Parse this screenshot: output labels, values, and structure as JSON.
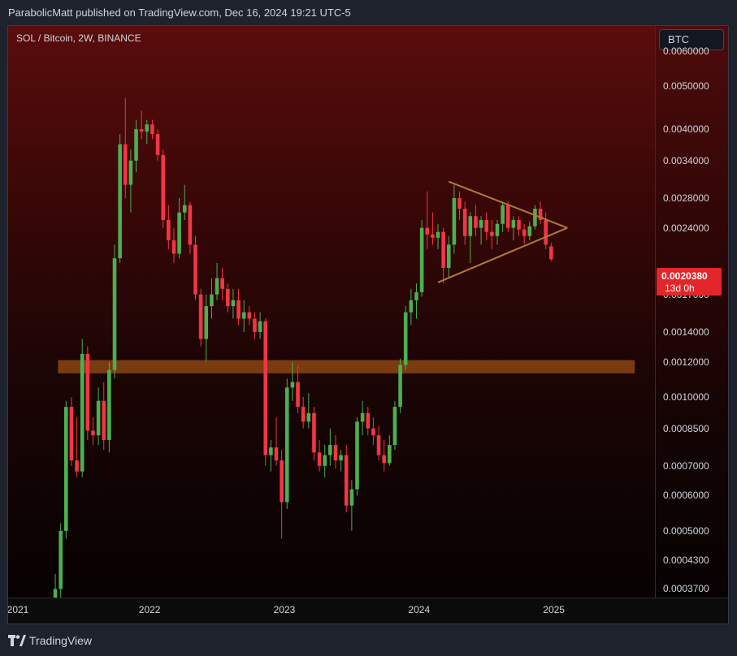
{
  "header": {
    "published": "ParabolicMatt published on TradingView.com, Dec 16, 2024 19:21 UTC-5"
  },
  "chart": {
    "title": "SOL / Bitcoin, 2W, BINANCE",
    "currency": "BTC",
    "last_price": "0.0020380",
    "countdown": "13d 0h",
    "price_ticks": [
      "0.0060000",
      "0.0050000",
      "0.0040000",
      "0.0034000",
      "0.0028000",
      "0.0024000",
      "0.0017000",
      "0.0014000",
      "0.0012000",
      "0.0010000",
      "0.0008500",
      "0.0007000",
      "0.0006000",
      "0.0005000",
      "0.0004300",
      "0.0003700"
    ],
    "time_ticks": [
      "2021",
      "2022",
      "2023",
      "2024",
      "2025"
    ]
  },
  "footer": {
    "brand": "TradingView"
  },
  "colors": {
    "up": "#4caf50",
    "down": "#f23645",
    "support_zone": "#8b4513",
    "triangle": "#b07a3a",
    "last_price": "#e3262b"
  },
  "chart_data": {
    "type": "candlestick",
    "title": "SOL / Bitcoin, 2W, BINANCE",
    "scale": "log",
    "ylim": [
      0.00036,
      0.0066
    ],
    "xlim": [
      2020.95,
      2025.75
    ],
    "grid": false,
    "candles": [
      {
        "t": 2021.3,
        "o": 0.0003,
        "h": 0.0004,
        "l": 0.00028,
        "c": 0.00037
      },
      {
        "t": 2021.34,
        "o": 0.00037,
        "h": 0.00052,
        "l": 0.00035,
        "c": 0.0005
      },
      {
        "t": 2021.38,
        "o": 0.0005,
        "h": 0.00098,
        "l": 0.00048,
        "c": 0.00095
      },
      {
        "t": 2021.42,
        "o": 0.00095,
        "h": 0.001,
        "l": 0.0007,
        "c": 0.00072
      },
      {
        "t": 2021.46,
        "o": 0.00072,
        "h": 0.0009,
        "l": 0.00066,
        "c": 0.00068
      },
      {
        "t": 2021.5,
        "o": 0.00068,
        "h": 0.00135,
        "l": 0.00066,
        "c": 0.00125
      },
      {
        "t": 2021.54,
        "o": 0.00125,
        "h": 0.0013,
        "l": 0.0008,
        "c": 0.00084
      },
      {
        "t": 2021.58,
        "o": 0.00084,
        "h": 0.0009,
        "l": 0.00078,
        "c": 0.00082
      },
      {
        "t": 2021.62,
        "o": 0.00082,
        "h": 0.00105,
        "l": 0.00078,
        "c": 0.00098
      },
      {
        "t": 2021.66,
        "o": 0.00098,
        "h": 0.00108,
        "l": 0.00076,
        "c": 0.0008
      },
      {
        "t": 2021.7,
        "o": 0.0008,
        "h": 0.0012,
        "l": 0.00075,
        "c": 0.00115
      },
      {
        "t": 2021.74,
        "o": 0.00115,
        "h": 0.0022,
        "l": 0.0011,
        "c": 0.00205
      },
      {
        "t": 2021.78,
        "o": 0.00205,
        "h": 0.0039,
        "l": 0.002,
        "c": 0.0037
      },
      {
        "t": 2021.82,
        "o": 0.0037,
        "h": 0.0047,
        "l": 0.0028,
        "c": 0.003
      },
      {
        "t": 2021.86,
        "o": 0.003,
        "h": 0.0036,
        "l": 0.0026,
        "c": 0.0034
      },
      {
        "t": 2021.9,
        "o": 0.0034,
        "h": 0.0042,
        "l": 0.0032,
        "c": 0.004
      },
      {
        "t": 2021.94,
        "o": 0.004,
        "h": 0.0044,
        "l": 0.0038,
        "c": 0.00395
      },
      {
        "t": 2021.98,
        "o": 0.00395,
        "h": 0.0042,
        "l": 0.0037,
        "c": 0.0041
      },
      {
        "t": 2022.02,
        "o": 0.0041,
        "h": 0.0042,
        "l": 0.0038,
        "c": 0.0039
      },
      {
        "t": 2022.06,
        "o": 0.0039,
        "h": 0.004,
        "l": 0.0034,
        "c": 0.0035
      },
      {
        "t": 2022.1,
        "o": 0.0035,
        "h": 0.0036,
        "l": 0.0024,
        "c": 0.0025
      },
      {
        "t": 2022.14,
        "o": 0.0025,
        "h": 0.0027,
        "l": 0.00215,
        "c": 0.00225
      },
      {
        "t": 2022.18,
        "o": 0.00225,
        "h": 0.0024,
        "l": 0.002,
        "c": 0.0021
      },
      {
        "t": 2022.22,
        "o": 0.0021,
        "h": 0.0028,
        "l": 0.00205,
        "c": 0.0026
      },
      {
        "t": 2022.26,
        "o": 0.0026,
        "h": 0.003,
        "l": 0.0025,
        "c": 0.0027
      },
      {
        "t": 2022.3,
        "o": 0.0027,
        "h": 0.00275,
        "l": 0.0021,
        "c": 0.0022
      },
      {
        "t": 2022.34,
        "o": 0.0022,
        "h": 0.0023,
        "l": 0.00165,
        "c": 0.0017
      },
      {
        "t": 2022.38,
        "o": 0.0017,
        "h": 0.00175,
        "l": 0.0013,
        "c": 0.00135
      },
      {
        "t": 2022.42,
        "o": 0.00135,
        "h": 0.0017,
        "l": 0.0012,
        "c": 0.0016
      },
      {
        "t": 2022.46,
        "o": 0.0016,
        "h": 0.00185,
        "l": 0.0015,
        "c": 0.0017
      },
      {
        "t": 2022.5,
        "o": 0.0017,
        "h": 0.002,
        "l": 0.00165,
        "c": 0.00185
      },
      {
        "t": 2022.54,
        "o": 0.00185,
        "h": 0.00195,
        "l": 0.00165,
        "c": 0.00175
      },
      {
        "t": 2022.58,
        "o": 0.00175,
        "h": 0.0018,
        "l": 0.00155,
        "c": 0.0016
      },
      {
        "t": 2022.62,
        "o": 0.0016,
        "h": 0.00175,
        "l": 0.0015,
        "c": 0.00165
      },
      {
        "t": 2022.66,
        "o": 0.00165,
        "h": 0.00175,
        "l": 0.00145,
        "c": 0.0015
      },
      {
        "t": 2022.7,
        "o": 0.0015,
        "h": 0.00165,
        "l": 0.0014,
        "c": 0.00155
      },
      {
        "t": 2022.74,
        "o": 0.00155,
        "h": 0.0016,
        "l": 0.00145,
        "c": 0.0015
      },
      {
        "t": 2022.78,
        "o": 0.0015,
        "h": 0.00155,
        "l": 0.00135,
        "c": 0.0014
      },
      {
        "t": 2022.82,
        "o": 0.0014,
        "h": 0.00155,
        "l": 0.00135,
        "c": 0.00148
      },
      {
        "t": 2022.86,
        "o": 0.00148,
        "h": 0.0015,
        "l": 0.0007,
        "c": 0.00074
      },
      {
        "t": 2022.9,
        "o": 0.00074,
        "h": 0.0008,
        "l": 0.00068,
        "c": 0.00077
      },
      {
        "t": 2022.94,
        "o": 0.00077,
        "h": 0.0009,
        "l": 0.0007,
        "c": 0.00072
      },
      {
        "t": 2022.98,
        "o": 0.00072,
        "h": 0.00076,
        "l": 0.00048,
        "c": 0.00058
      },
      {
        "t": 2023.02,
        "o": 0.00058,
        "h": 0.0011,
        "l": 0.00056,
        "c": 0.00105
      },
      {
        "t": 2023.06,
        "o": 0.00105,
        "h": 0.0012,
        "l": 0.00098,
        "c": 0.00108
      },
      {
        "t": 2023.1,
        "o": 0.00108,
        "h": 0.00118,
        "l": 0.00092,
        "c": 0.00095
      },
      {
        "t": 2023.14,
        "o": 0.00095,
        "h": 0.001,
        "l": 0.00085,
        "c": 0.00088
      },
      {
        "t": 2023.18,
        "o": 0.00088,
        "h": 0.00102,
        "l": 0.00085,
        "c": 0.00092
      },
      {
        "t": 2023.22,
        "o": 0.00092,
        "h": 0.00095,
        "l": 0.00072,
        "c": 0.00075
      },
      {
        "t": 2023.26,
        "o": 0.00075,
        "h": 0.0008,
        "l": 0.00068,
        "c": 0.0007
      },
      {
        "t": 2023.3,
        "o": 0.0007,
        "h": 0.00078,
        "l": 0.00066,
        "c": 0.00074
      },
      {
        "t": 2023.34,
        "o": 0.00074,
        "h": 0.00085,
        "l": 0.0007,
        "c": 0.00078
      },
      {
        "t": 2023.38,
        "o": 0.00078,
        "h": 0.00082,
        "l": 0.00069,
        "c": 0.00072
      },
      {
        "t": 2023.42,
        "o": 0.00072,
        "h": 0.00076,
        "l": 0.00068,
        "c": 0.00074
      },
      {
        "t": 2023.46,
        "o": 0.00074,
        "h": 0.00078,
        "l": 0.00055,
        "c": 0.00057
      },
      {
        "t": 2023.5,
        "o": 0.00057,
        "h": 0.00065,
        "l": 0.0005,
        "c": 0.00062
      },
      {
        "t": 2023.54,
        "o": 0.00062,
        "h": 0.0009,
        "l": 0.0006,
        "c": 0.00088
      },
      {
        "t": 2023.58,
        "o": 0.00088,
        "h": 0.00098,
        "l": 0.00082,
        "c": 0.00092
      },
      {
        "t": 2023.62,
        "o": 0.00092,
        "h": 0.00095,
        "l": 0.00082,
        "c": 0.00085
      },
      {
        "t": 2023.66,
        "o": 0.00085,
        "h": 0.0009,
        "l": 0.00078,
        "c": 0.00082
      },
      {
        "t": 2023.7,
        "o": 0.00082,
        "h": 0.00086,
        "l": 0.00072,
        "c": 0.00074
      },
      {
        "t": 2023.74,
        "o": 0.00074,
        "h": 0.0008,
        "l": 0.00068,
        "c": 0.00071
      },
      {
        "t": 2023.78,
        "o": 0.00071,
        "h": 0.00082,
        "l": 0.0007,
        "c": 0.00078
      },
      {
        "t": 2023.82,
        "o": 0.00078,
        "h": 0.00098,
        "l": 0.00076,
        "c": 0.00095
      },
      {
        "t": 2023.86,
        "o": 0.00095,
        "h": 0.00122,
        "l": 0.00092,
        "c": 0.00118
      },
      {
        "t": 2023.9,
        "o": 0.00118,
        "h": 0.0016,
        "l": 0.00115,
        "c": 0.00155
      },
      {
        "t": 2023.94,
        "o": 0.00155,
        "h": 0.00175,
        "l": 0.00145,
        "c": 0.00165
      },
      {
        "t": 2023.98,
        "o": 0.00165,
        "h": 0.0018,
        "l": 0.0015,
        "c": 0.00172
      },
      {
        "t": 2024.02,
        "o": 0.00172,
        "h": 0.0025,
        "l": 0.00168,
        "c": 0.0024
      },
      {
        "t": 2024.06,
        "o": 0.0024,
        "h": 0.0029,
        "l": 0.00215,
        "c": 0.00232
      },
      {
        "t": 2024.1,
        "o": 0.00232,
        "h": 0.0026,
        "l": 0.0022,
        "c": 0.00228
      },
      {
        "t": 2024.14,
        "o": 0.00228,
        "h": 0.00245,
        "l": 0.00215,
        "c": 0.00235
      },
      {
        "t": 2024.18,
        "o": 0.00235,
        "h": 0.0024,
        "l": 0.0018,
        "c": 0.00195
      },
      {
        "t": 2024.22,
        "o": 0.00195,
        "h": 0.0023,
        "l": 0.00185,
        "c": 0.0022
      },
      {
        "t": 2024.26,
        "o": 0.0022,
        "h": 0.003,
        "l": 0.0021,
        "c": 0.0028
      },
      {
        "t": 2024.3,
        "o": 0.0028,
        "h": 0.0029,
        "l": 0.0025,
        "c": 0.00265
      },
      {
        "t": 2024.34,
        "o": 0.00265,
        "h": 0.00275,
        "l": 0.0022,
        "c": 0.0023
      },
      {
        "t": 2024.38,
        "o": 0.0023,
        "h": 0.0026,
        "l": 0.002,
        "c": 0.00255
      },
      {
        "t": 2024.42,
        "o": 0.00255,
        "h": 0.0027,
        "l": 0.0023,
        "c": 0.0024
      },
      {
        "t": 2024.46,
        "o": 0.0024,
        "h": 0.00255,
        "l": 0.0022,
        "c": 0.0025
      },
      {
        "t": 2024.5,
        "o": 0.0025,
        "h": 0.0026,
        "l": 0.00225,
        "c": 0.00235
      },
      {
        "t": 2024.54,
        "o": 0.00235,
        "h": 0.0025,
        "l": 0.00215,
        "c": 0.0023
      },
      {
        "t": 2024.58,
        "o": 0.0023,
        "h": 0.0025,
        "l": 0.0022,
        "c": 0.00245
      },
      {
        "t": 2024.62,
        "o": 0.00245,
        "h": 0.00275,
        "l": 0.00235,
        "c": 0.0027
      },
      {
        "t": 2024.66,
        "o": 0.0027,
        "h": 0.00275,
        "l": 0.00235,
        "c": 0.0024
      },
      {
        "t": 2024.7,
        "o": 0.0024,
        "h": 0.00255,
        "l": 0.00225,
        "c": 0.0025
      },
      {
        "t": 2024.74,
        "o": 0.0025,
        "h": 0.00255,
        "l": 0.0023,
        "c": 0.00238
      },
      {
        "t": 2024.78,
        "o": 0.00238,
        "h": 0.00245,
        "l": 0.0022,
        "c": 0.0023
      },
      {
        "t": 2024.82,
        "o": 0.0023,
        "h": 0.00248,
        "l": 0.00225,
        "c": 0.00242
      },
      {
        "t": 2024.86,
        "o": 0.00242,
        "h": 0.0027,
        "l": 0.00238,
        "c": 0.00265
      },
      {
        "t": 2024.9,
        "o": 0.00265,
        "h": 0.00275,
        "l": 0.00245,
        "c": 0.0025
      },
      {
        "t": 2024.94,
        "o": 0.0025,
        "h": 0.0026,
        "l": 0.00215,
        "c": 0.0022
      },
      {
        "t": 2024.98,
        "o": 0.00218,
        "h": 0.00222,
        "l": 0.00202,
        "c": 0.00204
      }
    ],
    "support_zone": {
      "x_start": 2021.32,
      "x_end": 2025.6,
      "y_low": 0.00113,
      "y_high": 0.00121
    },
    "triangle": {
      "upper": [
        [
          2024.22,
          0.00305
        ],
        [
          2025.1,
          0.0024
        ]
      ],
      "lower": [
        [
          2024.14,
          0.00181
        ],
        [
          2025.1,
          0.0024
        ]
      ]
    }
  }
}
